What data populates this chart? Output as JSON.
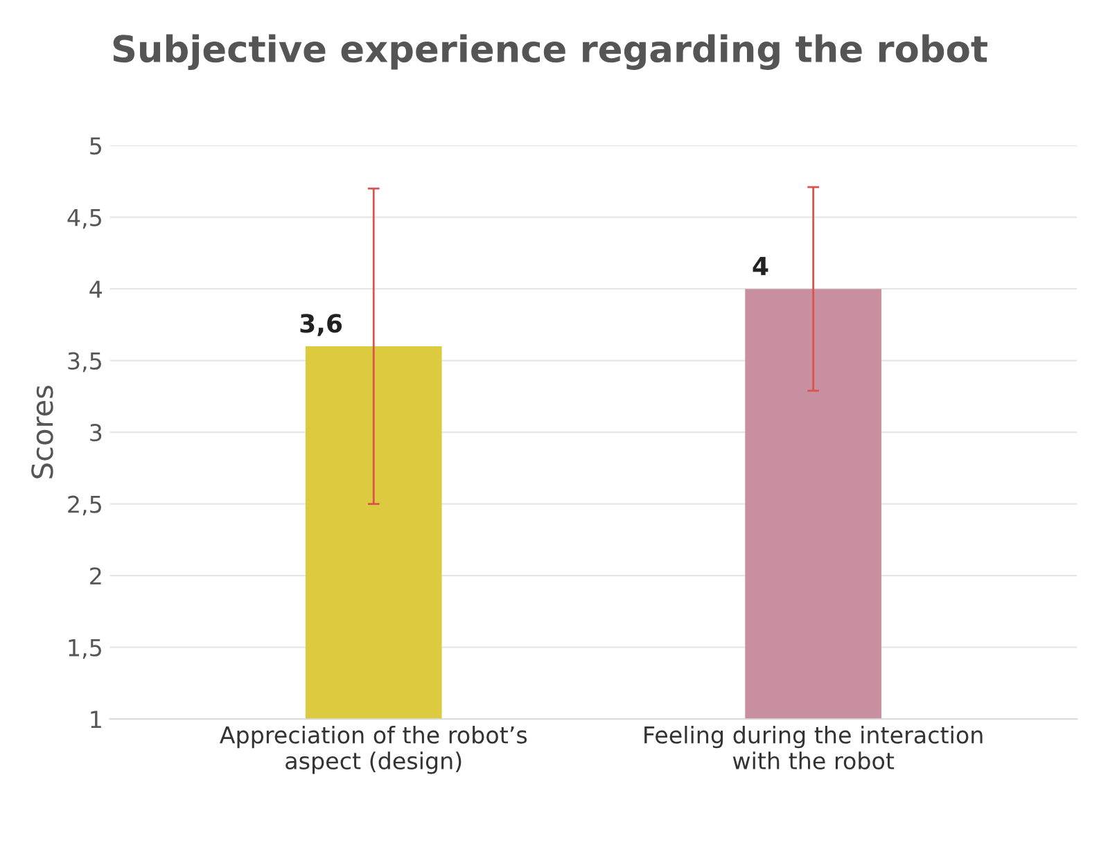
{
  "chart_data": {
    "type": "bar",
    "title": "Subjective experience regarding the robot",
    "ylabel": "Scores",
    "categories": [
      "Appreciation of the robot’s\naspect (design)",
      "Feeling during the interaction\nwith the robot"
    ],
    "values": [
      3.6,
      4.0
    ],
    "colors": [
      "#dccb3e",
      "#c88fa1"
    ],
    "errors": [
      1.1,
      0.71
    ],
    "value_labels": [
      "3,6",
      "4"
    ],
    "ylim": [
      1,
      5
    ],
    "yticks": [
      1,
      {
        "value": 1.5,
        "label": "1,5"
      },
      2,
      {
        "value": 2.5,
        "label": "2,5"
      },
      3,
      {
        "value": 3.5,
        "label": "3,5"
      },
      4,
      {
        "value": 4.5,
        "label": "4,5"
      },
      5
    ],
    "grid": "y",
    "legend": false
  }
}
